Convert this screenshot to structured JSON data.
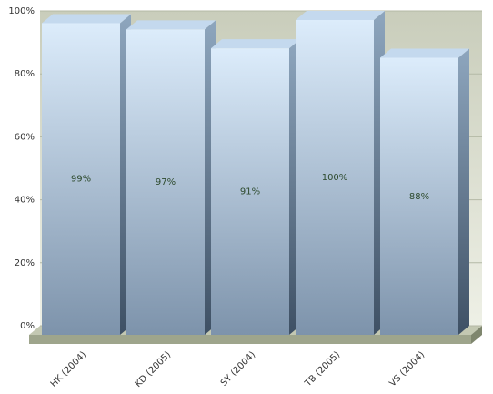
{
  "chart_data": {
    "type": "bar",
    "categories": [
      "HK (2004)",
      "KD (2005)",
      "SY (2004)",
      "TB (2005)",
      "VS (2004)"
    ],
    "values": [
      99,
      97,
      91,
      100,
      88
    ],
    "value_labels": [
      "99%",
      "97%",
      "91%",
      "100%",
      "88%"
    ],
    "color": "#7d93ab",
    "ylim": [
      0,
      100
    ],
    "yticks": [
      {
        "value": 0,
        "label": "0%"
      },
      {
        "value": 20,
        "label": "20%"
      },
      {
        "value": 40,
        "label": "40%"
      },
      {
        "value": 60,
        "label": "60%"
      },
      {
        "value": 80,
        "label": "80%"
      },
      {
        "value": 100,
        "label": "100%"
      }
    ],
    "grid": true
  }
}
